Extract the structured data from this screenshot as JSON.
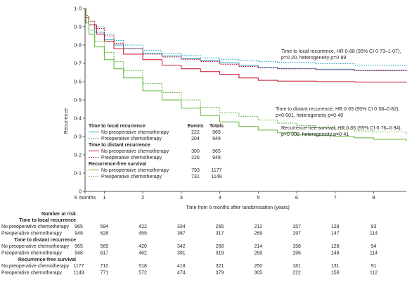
{
  "chart_data": {
    "type": "line",
    "ylabel": "Recurrence",
    "xlabel": "Time from 6 months after randomisation (years)",
    "xlim": [
      0,
      8.35
    ],
    "ylim": [
      0,
      1.0
    ],
    "x_ticks": [
      {
        "x": 0,
        "label": "6 months"
      },
      {
        "x": 0.5,
        "label": "1"
      },
      {
        "x": 1.5,
        "label": "2"
      },
      {
        "x": 2.5,
        "label": "3"
      },
      {
        "x": 3.5,
        "label": "4"
      },
      {
        "x": 4.5,
        "label": "5"
      },
      {
        "x": 5.5,
        "label": "6"
      },
      {
        "x": 6.5,
        "label": "7"
      },
      {
        "x": 7.5,
        "label": "8"
      }
    ],
    "y_ticks": [
      {
        "y": 0,
        "label": "0"
      },
      {
        "y": 0.1,
        "label": "0·1"
      },
      {
        "y": 0.2,
        "label": "0·2"
      },
      {
        "y": 0.3,
        "label": "0·3"
      },
      {
        "y": 0.4,
        "label": "0·4"
      },
      {
        "y": 0.5,
        "label": "0·5"
      },
      {
        "y": 0.6,
        "label": "0·6"
      },
      {
        "y": 0.7,
        "label": "0·7"
      },
      {
        "y": 0.8,
        "label": "0·8"
      },
      {
        "y": 0.9,
        "label": "0·9"
      },
      {
        "y": 1.0,
        "label": "1·0"
      }
    ],
    "series": [
      {
        "key": "local_no",
        "color": "#29a3c8",
        "dash": false,
        "points": [
          [
            0,
            1.0
          ],
          [
            0.02,
            0.95
          ],
          [
            0.1,
            0.91
          ],
          [
            0.25,
            0.87
          ],
          [
            0.5,
            0.83
          ],
          [
            0.75,
            0.8
          ],
          [
            1.0,
            0.78
          ],
          [
            1.5,
            0.755
          ],
          [
            2.0,
            0.74
          ],
          [
            2.5,
            0.725
          ],
          [
            3.0,
            0.715
          ],
          [
            3.5,
            0.703
          ],
          [
            4.0,
            0.69
          ],
          [
            4.5,
            0.678
          ],
          [
            5.0,
            0.672
          ],
          [
            6.0,
            0.668
          ],
          [
            7.0,
            0.662
          ],
          [
            8.35,
            0.66
          ]
        ]
      },
      {
        "key": "local_pre",
        "color": "#29a3c8",
        "dash": true,
        "points": [
          [
            0,
            1.0
          ],
          [
            0.02,
            0.96
          ],
          [
            0.1,
            0.93
          ],
          [
            0.25,
            0.9
          ],
          [
            0.5,
            0.86
          ],
          [
            0.75,
            0.825
          ],
          [
            1.0,
            0.8
          ],
          [
            1.5,
            0.77
          ],
          [
            2.0,
            0.755
          ],
          [
            2.5,
            0.742
          ],
          [
            3.0,
            0.73
          ],
          [
            3.5,
            0.722
          ],
          [
            4.0,
            0.716
          ],
          [
            4.5,
            0.71
          ],
          [
            5.0,
            0.705
          ],
          [
            6.0,
            0.698
          ],
          [
            7.0,
            0.69
          ],
          [
            8.35,
            0.685
          ]
        ]
      },
      {
        "key": "distant_no",
        "color": "#c8102e",
        "dash": false,
        "points": [
          [
            0,
            1.0
          ],
          [
            0.02,
            0.95
          ],
          [
            0.1,
            0.91
          ],
          [
            0.3,
            0.86
          ],
          [
            0.5,
            0.82
          ],
          [
            0.75,
            0.78
          ],
          [
            1.0,
            0.75
          ],
          [
            1.5,
            0.72
          ],
          [
            2.0,
            0.69
          ],
          [
            2.5,
            0.67
          ],
          [
            3.0,
            0.655
          ],
          [
            3.5,
            0.64
          ],
          [
            4.0,
            0.62
          ],
          [
            4.5,
            0.607
          ],
          [
            5.0,
            0.603
          ],
          [
            6.0,
            0.6
          ],
          [
            7.0,
            0.597
          ],
          [
            8.35,
            0.594
          ]
        ]
      },
      {
        "key": "distant_pre",
        "color": "#c8102e",
        "dash": true,
        "points": [
          [
            0,
            1.0
          ],
          [
            0.02,
            0.96
          ],
          [
            0.1,
            0.93
          ],
          [
            0.25,
            0.89
          ],
          [
            0.5,
            0.85
          ],
          [
            0.75,
            0.81
          ],
          [
            1.0,
            0.78
          ],
          [
            1.5,
            0.75
          ],
          [
            2.0,
            0.735
          ],
          [
            2.5,
            0.722
          ],
          [
            3.0,
            0.71
          ],
          [
            3.5,
            0.695
          ],
          [
            4.0,
            0.683
          ],
          [
            4.5,
            0.675
          ],
          [
            5.0,
            0.67
          ],
          [
            6.0,
            0.665
          ],
          [
            7.0,
            0.66
          ],
          [
            8.35,
            0.655
          ]
        ]
      },
      {
        "key": "rfs_no",
        "color": "#5cb531",
        "dash": false,
        "points": [
          [
            0,
            1.0
          ],
          [
            0.02,
            0.92
          ],
          [
            0.1,
            0.86
          ],
          [
            0.25,
            0.79
          ],
          [
            0.5,
            0.72
          ],
          [
            0.75,
            0.67
          ],
          [
            1.0,
            0.62
          ],
          [
            1.5,
            0.55
          ],
          [
            2.0,
            0.5
          ],
          [
            2.5,
            0.455
          ],
          [
            3.0,
            0.415
          ],
          [
            3.5,
            0.38
          ],
          [
            4.0,
            0.355
          ],
          [
            4.5,
            0.335
          ],
          [
            5.0,
            0.32
          ],
          [
            5.5,
            0.31
          ],
          [
            6.0,
            0.305
          ],
          [
            6.5,
            0.3
          ],
          [
            7.0,
            0.293
          ],
          [
            7.5,
            0.285
          ],
          [
            8.35,
            0.275
          ]
        ]
      },
      {
        "key": "rfs_pre",
        "color": "#5cb531",
        "dash": true,
        "points": [
          [
            0,
            1.0
          ],
          [
            0.02,
            0.93
          ],
          [
            0.1,
            0.88
          ],
          [
            0.25,
            0.82
          ],
          [
            0.5,
            0.76
          ],
          [
            0.75,
            0.71
          ],
          [
            1.0,
            0.66
          ],
          [
            1.5,
            0.59
          ],
          [
            2.0,
            0.54
          ],
          [
            2.5,
            0.5
          ],
          [
            3.0,
            0.46
          ],
          [
            3.5,
            0.43
          ],
          [
            4.0,
            0.41
          ],
          [
            4.5,
            0.39
          ],
          [
            5.0,
            0.373
          ],
          [
            5.5,
            0.36
          ],
          [
            6.0,
            0.348
          ],
          [
            6.5,
            0.338
          ],
          [
            7.0,
            0.33
          ],
          [
            7.5,
            0.325
          ],
          [
            8.35,
            0.315
          ]
        ]
      }
    ],
    "annotations": [
      {
        "lines": [
          "Time to local recurrence, HR 0·88 (95% CI 0·73–1·07),",
          "p=0·20, heterogeneity p=0·89"
        ]
      },
      {
        "lines": [
          "Time to distant recurrence, HR 0·69 (95% CI 0·58–0·82),",
          "p<0·001, heterogeneity p=0·40"
        ]
      },
      {
        "lines": [
          "Recurrence-free survival, HR 0·85 (95% CI 0·76–0·94),",
          "p<0·002, heterogeneity p=0·41"
        ]
      }
    ],
    "legend": {
      "placement": "bottom-left",
      "col_events": "Events",
      "col_totals": "Totals",
      "groups": [
        {
          "title": "Time to local recurrence",
          "items": [
            {
              "series": "local_no",
              "label": "No preoperative chemotherapy",
              "events": "222",
              "totals": "965"
            },
            {
              "series": "local_pre",
              "label": "Preoperative chemotherapy",
              "events": "204",
              "totals": "948"
            }
          ]
        },
        {
          "title": "Time to distant recurrence",
          "items": [
            {
              "series": "distant_no",
              "label": "No preoperative chemotherapy",
              "events": "300",
              "totals": "965"
            },
            {
              "series": "distant_pre",
              "label": "Preoperative chemotherapy",
              "events": "226",
              "totals": "948"
            }
          ]
        },
        {
          "title": "Recurrence-free survival",
          "items": [
            {
              "series": "rfs_no",
              "label": "No preoperative chemotherapy",
              "events": "793",
              "totals": "1177"
            },
            {
              "series": "rfs_pre",
              "label": "Preoperative chemotherapy",
              "events": "731",
              "totals": "1149"
            }
          ]
        }
      ]
    },
    "risk_table": {
      "title": "Number at risk",
      "groups": [
        {
          "title": "Time to local recurrence",
          "rows": [
            {
              "label": "No preoperative chemotherapy",
              "values": [
                "965",
                "594",
                "422",
                "334",
                "265",
                "212",
                "157",
                "128",
                "93"
              ]
            },
            {
              "label": "Preoperative chemotherapy",
              "values": [
                "948",
                "628",
                "459",
                "387",
                "317",
                "269",
                "197",
                "147",
                "114"
              ]
            }
          ]
        },
        {
          "title": "Time to distant recurrence",
          "rows": [
            {
              "label": "No preoperative chemotherapy",
              "values": [
                "965",
                "569",
                "420",
                "342",
                "268",
                "214",
                "158",
                "128",
                "94"
              ]
            },
            {
              "label": "Preoperative chemotherapy",
              "values": [
                "948",
                "617",
                "462",
                "391",
                "319",
                "269",
                "196",
                "148",
                "114"
              ]
            }
          ]
        },
        {
          "title": "Recurrence-free survival",
          "rows": [
            {
              "label": "No preoperative chemotherapy",
              "values": [
                "1177",
                "710",
                "518",
                "418",
                "321",
                "250",
                "181",
                "131",
                "91"
              ]
            },
            {
              "label": "Preoperative chemotherapy",
              "values": [
                "1149",
                "771",
                "572",
                "474",
                "379",
                "305",
                "222",
                "156",
                "112"
              ]
            }
          ]
        }
      ]
    }
  }
}
